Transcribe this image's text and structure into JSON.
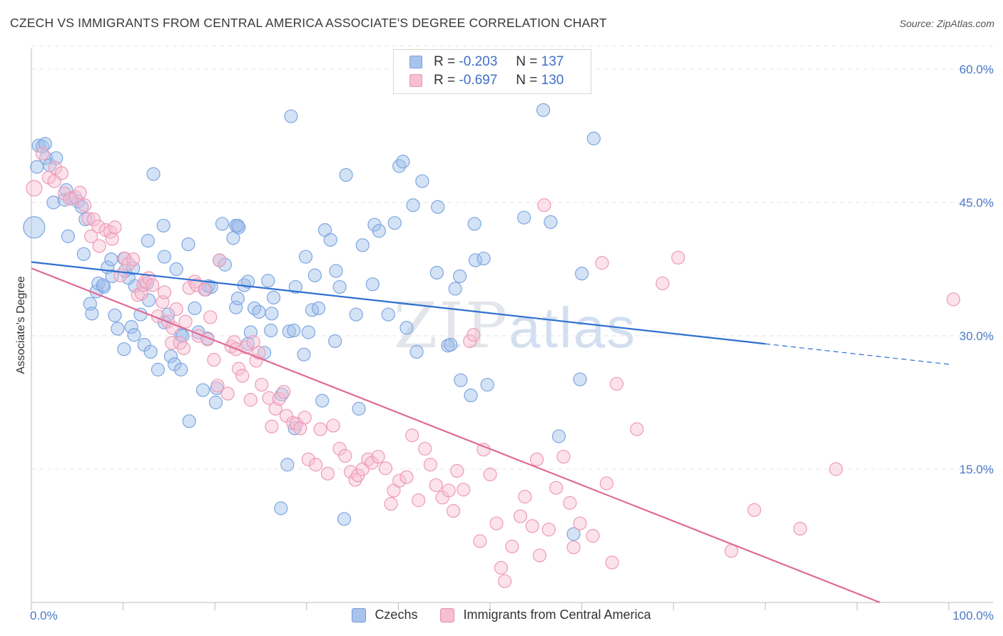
{
  "title": "CZECH VS IMMIGRANTS FROM CENTRAL AMERICA ASSOCIATE'S DEGREE CORRELATION CHART",
  "source": "Source: ZipAtlas.com",
  "watermark": {
    "zip": "ZIP",
    "atlas": "atlas"
  },
  "legend": {
    "rows": [
      {
        "r_label": "R =",
        "r_value": "-0.203",
        "n_label": "N =",
        "n_value": "137",
        "color": "#a9c4ec",
        "border": "#7aa0dd"
      },
      {
        "r_label": "R =",
        "r_value": "-0.697",
        "n_label": "N =",
        "n_value": "130",
        "color": "#f6bfd2",
        "border": "#ee98b6"
      }
    ]
  },
  "bottom_legend": [
    {
      "label": "Czechs",
      "color": "#a9c4ec",
      "border": "#6f95d8"
    },
    {
      "label": "Immigrants from Central America",
      "color": "#f6bfd2",
      "border": "#e88bab"
    }
  ],
  "chart_data": {
    "type": "scatter",
    "title": "CZECH VS IMMIGRANTS FROM CENTRAL AMERICA ASSOCIATE'S DEGREE CORRELATION CHART",
    "xlabel": "",
    "ylabel": "Associate's Degree",
    "xlim": [
      0,
      100
    ],
    "ylim": [
      0,
      60
    ],
    "x_tick_labels": [
      "0.0%",
      "100.0%"
    ],
    "y_ticks": [
      15,
      30,
      45,
      60
    ],
    "y_tick_labels": [
      "15.0%",
      "30.0%",
      "45.0%",
      "60.0%"
    ],
    "grid": true,
    "series": [
      {
        "name": "Czechs",
        "color": "#7ea6e0",
        "fill": "rgba(160,190,235,0.45)",
        "r": -0.203,
        "n": 137,
        "trend": {
          "x0": 0,
          "y0": 38.3,
          "x1": 80,
          "y1": 29.1,
          "color": "#2f6fd0",
          "dash_to": 100,
          "dash_y": 26.8
        },
        "points": [
          [
            0.6,
            49
          ],
          [
            0.8,
            51.4
          ],
          [
            1.2,
            51.3
          ],
          [
            1.5,
            51.6
          ],
          [
            1.6,
            50
          ],
          [
            2,
            49.2
          ],
          [
            2.7,
            50
          ],
          [
            2.4,
            45
          ],
          [
            3.6,
            45.3
          ],
          [
            3.8,
            46.4
          ],
          [
            4.4,
            45.5
          ],
          [
            5.1,
            45.1
          ],
          [
            5.5,
            44.5
          ],
          [
            5.9,
            43.1
          ],
          [
            4,
            41.2
          ],
          [
            5.7,
            39.2
          ],
          [
            6.4,
            33.6
          ],
          [
            6.6,
            32.5
          ],
          [
            7.1,
            35
          ],
          [
            7.3,
            35.9
          ],
          [
            7.9,
            35.5
          ],
          [
            7.8,
            35.7
          ],
          [
            8.3,
            37.7
          ],
          [
            8.7,
            38.6
          ],
          [
            8.8,
            36.7
          ],
          [
            9.1,
            32.3
          ],
          [
            9.4,
            30.8
          ],
          [
            10.1,
            38.7
          ],
          [
            10.6,
            36.5
          ],
          [
            10.2,
            37.3
          ],
          [
            10.1,
            28.5
          ],
          [
            11.1,
            37.6
          ],
          [
            10.9,
            31
          ],
          [
            11.2,
            30.1
          ],
          [
            11.3,
            35.6
          ],
          [
            11.9,
            32.4
          ],
          [
            12.3,
            29
          ],
          [
            12.6,
            35.9
          ],
          [
            12.8,
            34
          ],
          [
            12.7,
            40.7
          ],
          [
            13,
            28.2
          ],
          [
            13.3,
            48.2
          ],
          [
            13.8,
            26.2
          ],
          [
            14.4,
            42.4
          ],
          [
            14.5,
            38.9
          ],
          [
            14.9,
            32.4
          ],
          [
            14.5,
            31.5
          ],
          [
            15.2,
            27.7
          ],
          [
            15.6,
            26.8
          ],
          [
            16.3,
            26.2
          ],
          [
            15.8,
            37.5
          ],
          [
            16.3,
            30.1
          ],
          [
            16.5,
            30
          ],
          [
            17.2,
            20.4
          ],
          [
            17.1,
            40.3
          ],
          [
            17.8,
            33.1
          ],
          [
            18.2,
            30.4
          ],
          [
            18.7,
            23.9
          ],
          [
            19,
            35.2
          ],
          [
            19.2,
            29.7
          ],
          [
            19.3,
            35.6
          ],
          [
            19.6,
            35.5
          ],
          [
            20.1,
            22.5
          ],
          [
            20.2,
            24.1
          ],
          [
            20.5,
            38.5
          ],
          [
            20.8,
            42.6
          ],
          [
            21.1,
            38
          ],
          [
            22,
            41
          ],
          [
            22.3,
            33.2
          ],
          [
            22.5,
            34.2
          ],
          [
            22.3,
            42.4
          ],
          [
            22.6,
            42.2
          ],
          [
            22.5,
            42.4
          ],
          [
            23.2,
            35.7
          ],
          [
            23.6,
            29.1
          ],
          [
            23.9,
            30.4
          ],
          [
            23.6,
            36.1
          ],
          [
            24.3,
            33.1
          ],
          [
            24.8,
            32.7
          ],
          [
            25.4,
            28.1
          ],
          [
            25.8,
            36.2
          ],
          [
            26.2,
            32.5
          ],
          [
            26.1,
            30.6
          ],
          [
            26.4,
            34.3
          ],
          [
            27.3,
            23.4
          ],
          [
            27.9,
            15.5
          ],
          [
            27.2,
            10.6
          ],
          [
            28.1,
            30.5
          ],
          [
            28.3,
            54.7
          ],
          [
            28.7,
            19.6
          ],
          [
            28.6,
            30.6
          ],
          [
            28.8,
            35.5
          ],
          [
            29.7,
            27.9
          ],
          [
            29.9,
            38.9
          ],
          [
            30.2,
            30.4
          ],
          [
            30.6,
            32.9
          ],
          [
            30.9,
            36.8
          ],
          [
            31.3,
            33.1
          ],
          [
            31.7,
            22.7
          ],
          [
            32,
            41.9
          ],
          [
            32.6,
            40.8
          ],
          [
            33.1,
            29.4
          ],
          [
            33.2,
            37.3
          ],
          [
            33.6,
            35.5
          ],
          [
            34.1,
            9.4
          ],
          [
            34.3,
            48.1
          ],
          [
            35.4,
            32.4
          ],
          [
            35.7,
            21.8
          ],
          [
            36.1,
            40.2
          ],
          [
            37.2,
            35.8
          ],
          [
            37.4,
            42.5
          ],
          [
            37.9,
            41.8
          ],
          [
            38.9,
            32.4
          ],
          [
            39.6,
            42.7
          ],
          [
            40.1,
            49.1
          ],
          [
            40.5,
            49.6
          ],
          [
            40.9,
            30.9
          ],
          [
            41.6,
            44.7
          ],
          [
            42,
            28.2
          ],
          [
            42.6,
            47.4
          ],
          [
            44.2,
            37.1
          ],
          [
            44.3,
            44.5
          ],
          [
            45.4,
            28.9
          ],
          [
            45.7,
            29
          ],
          [
            46.2,
            35.3
          ],
          [
            46.7,
            36.7
          ],
          [
            46.8,
            25
          ],
          [
            47.9,
            23.3
          ],
          [
            48.3,
            42.6
          ],
          [
            48.4,
            38.5
          ],
          [
            49.3,
            38.7
          ],
          [
            49.7,
            24.5
          ],
          [
            53.7,
            43.3
          ],
          [
            55.8,
            55.4
          ],
          [
            56.6,
            42.8
          ],
          [
            57.5,
            18.7
          ],
          [
            59.8,
            25.1
          ],
          [
            60,
            37
          ],
          [
            61.3,
            52.2
          ],
          [
            59.1,
            7.7
          ],
          [
            0.3,
            42.2
          ]
        ]
      },
      {
        "name": "Immigrants from Central America",
        "color": "#ee9ab7",
        "fill": "rgba(246,190,210,0.45)",
        "r": -0.697,
        "n": 130,
        "trend": {
          "x0": 0,
          "y0": 37.6,
          "x1": 92.5,
          "y1": 0,
          "color": "#e06b96"
        },
        "points": [
          [
            0.3,
            46.6
          ],
          [
            1.2,
            50.5
          ],
          [
            1.9,
            47.8
          ],
          [
            2.5,
            47.4
          ],
          [
            2.6,
            48.9
          ],
          [
            3.3,
            48.3
          ],
          [
            3.6,
            46
          ],
          [
            4.2,
            45.4
          ],
          [
            4.8,
            45.6
          ],
          [
            5.3,
            46.1
          ],
          [
            5.8,
            44.7
          ],
          [
            6.2,
            43.2
          ],
          [
            6.5,
            41.2
          ],
          [
            6.8,
            43.1
          ],
          [
            7.3,
            42.3
          ],
          [
            7.4,
            40.1
          ],
          [
            8.1,
            41.9
          ],
          [
            8.6,
            41.7
          ],
          [
            8.8,
            40.9
          ],
          [
            9.1,
            42.2
          ],
          [
            9.7,
            36.8
          ],
          [
            10.2,
            38.7
          ],
          [
            10.6,
            38.1
          ],
          [
            11.1,
            38.6
          ],
          [
            11.6,
            34.6
          ],
          [
            12,
            34.8
          ],
          [
            12.2,
            35.7
          ],
          [
            12.4,
            36.1
          ],
          [
            12.8,
            36.5
          ],
          [
            13.2,
            35.7
          ],
          [
            13.8,
            32.2
          ],
          [
            14.3,
            33.8
          ],
          [
            14.5,
            34.9
          ],
          [
            14.9,
            31.6
          ],
          [
            15.3,
            29.2
          ],
          [
            15.4,
            30.9
          ],
          [
            15.8,
            33
          ],
          [
            16.2,
            29.2
          ],
          [
            16.6,
            28.6
          ],
          [
            16.8,
            31.6
          ],
          [
            17.2,
            35.4
          ],
          [
            17.8,
            36.1
          ],
          [
            18,
            35.7
          ],
          [
            18.2,
            30
          ],
          [
            18.9,
            35.2
          ],
          [
            19.2,
            29.6
          ],
          [
            19.5,
            32.1
          ],
          [
            19.9,
            27.3
          ],
          [
            20.3,
            24.4
          ],
          [
            20.5,
            38.5
          ],
          [
            21.4,
            23.5
          ],
          [
            21.8,
            28.8
          ],
          [
            22.1,
            29.3
          ],
          [
            22.3,
            28.5
          ],
          [
            22.6,
            26.3
          ],
          [
            23,
            25.5
          ],
          [
            23.4,
            28.7
          ],
          [
            23.9,
            22.8
          ],
          [
            24.2,
            29.3
          ],
          [
            24.5,
            27.2
          ],
          [
            24.8,
            28.1
          ],
          [
            25.1,
            24.5
          ],
          [
            25.9,
            23
          ],
          [
            26.2,
            19.8
          ],
          [
            26.6,
            21.8
          ],
          [
            27,
            22.9
          ],
          [
            27.5,
            23.7
          ],
          [
            27.8,
            21
          ],
          [
            28.5,
            20.2
          ],
          [
            28.9,
            20.1
          ],
          [
            29.3,
            19.6
          ],
          [
            29.8,
            20.8
          ],
          [
            30.2,
            16.1
          ],
          [
            31,
            15.5
          ],
          [
            31.5,
            19.5
          ],
          [
            32.3,
            14.5
          ],
          [
            32.9,
            19.9
          ],
          [
            33.6,
            17.3
          ],
          [
            34.2,
            16.5
          ],
          [
            34.8,
            14.7
          ],
          [
            35.3,
            13.8
          ],
          [
            35.6,
            14.3
          ],
          [
            36.1,
            15
          ],
          [
            36.7,
            16.1
          ],
          [
            37.1,
            15.7
          ],
          [
            37.8,
            16.4
          ],
          [
            38.6,
            15.1
          ],
          [
            39.2,
            11.1
          ],
          [
            39.5,
            12.6
          ],
          [
            40.1,
            13.7
          ],
          [
            40.9,
            14.1
          ],
          [
            41.5,
            18.8
          ],
          [
            42.2,
            11.5
          ],
          [
            42.9,
            17.3
          ],
          [
            43.5,
            15.5
          ],
          [
            44.1,
            13.2
          ],
          [
            44.8,
            11.8
          ],
          [
            45.5,
            12.6
          ],
          [
            46,
            10.3
          ],
          [
            46.4,
            14.8
          ],
          [
            47.1,
            12.7
          ],
          [
            47.8,
            29.4
          ],
          [
            48.2,
            30.1
          ],
          [
            48.9,
            6.9
          ],
          [
            49.3,
            17.2
          ],
          [
            50,
            14.4
          ],
          [
            50.7,
            8.9
          ],
          [
            51.2,
            3.9
          ],
          [
            51.6,
            2.4
          ],
          [
            52.4,
            6.3
          ],
          [
            53.3,
            9.7
          ],
          [
            53.8,
            11.9
          ],
          [
            54.6,
            8.6
          ],
          [
            55.1,
            16.1
          ],
          [
            55.4,
            5.3
          ],
          [
            55.9,
            44.7
          ],
          [
            56.4,
            8.2
          ],
          [
            57.2,
            12.9
          ],
          [
            58,
            16.4
          ],
          [
            58.7,
            11.2
          ],
          [
            59.1,
            6.2
          ],
          [
            59.8,
            8.9
          ],
          [
            61.2,
            7.5
          ],
          [
            62.2,
            38.2
          ],
          [
            62.7,
            13.4
          ],
          [
            63.3,
            4.5
          ],
          [
            63.8,
            24.6
          ],
          [
            66,
            19.5
          ],
          [
            68.8,
            35.9
          ],
          [
            70.5,
            38.8
          ],
          [
            76.3,
            5.8
          ],
          [
            78.8,
            10.4
          ],
          [
            83.8,
            8.3
          ],
          [
            87.7,
            15
          ],
          [
            100.5,
            34.1
          ]
        ]
      }
    ]
  }
}
